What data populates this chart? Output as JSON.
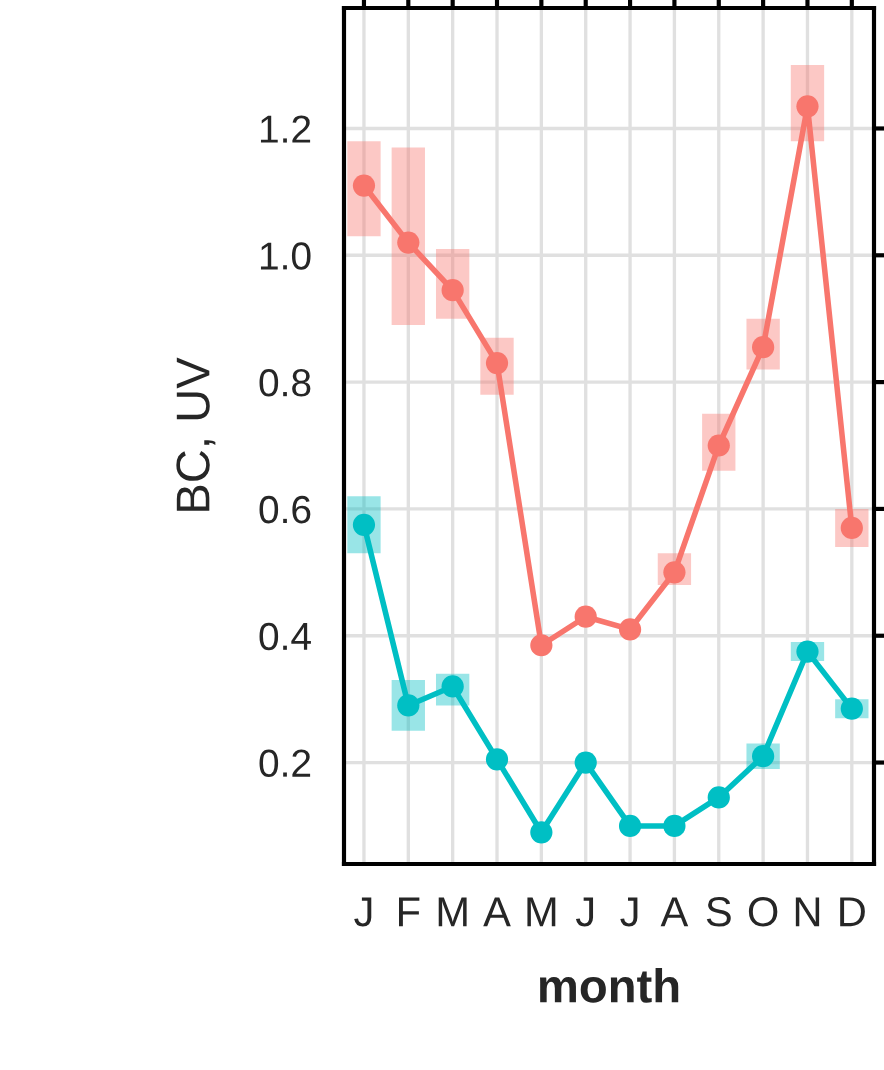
{
  "chart_data": {
    "type": "line",
    "xlabel": "month",
    "ylabel": "BC, UV",
    "categories": [
      "J",
      "F",
      "M",
      "A",
      "M",
      "J",
      "J",
      "A",
      "S",
      "O",
      "N",
      "D"
    ],
    "series": [
      {
        "color": "#f8766d",
        "values": [
          1.11,
          1.02,
          0.945,
          0.83,
          0.385,
          0.43,
          0.41,
          0.5,
          0.7,
          0.855,
          1.235,
          0.57
        ],
        "errors": [
          [
            1.03,
            1.18
          ],
          [
            0.89,
            1.17
          ],
          [
            0.9,
            1.01
          ],
          [
            0.78,
            0.87
          ],
          null,
          null,
          null,
          [
            0.48,
            0.53
          ],
          [
            0.66,
            0.75
          ],
          [
            0.82,
            0.9
          ],
          [
            1.18,
            1.3
          ],
          [
            0.54,
            0.6
          ]
        ]
      },
      {
        "color": "#00bfc4",
        "values": [
          0.575,
          0.29,
          0.32,
          0.205,
          0.09,
          0.2,
          0.1,
          0.1,
          0.145,
          0.21,
          0.375,
          0.285
        ],
        "errors": [
          [
            0.53,
            0.62
          ],
          [
            0.25,
            0.33
          ],
          [
            0.29,
            0.34
          ],
          null,
          null,
          null,
          null,
          null,
          null,
          [
            0.19,
            0.23
          ],
          [
            0.36,
            0.39
          ],
          [
            0.27,
            0.3
          ]
        ]
      }
    ],
    "ylim": [
      0.04,
      1.39
    ],
    "yticks": [
      0.2,
      0.4,
      0.6,
      0.8,
      {
        "value": 1.0,
        "label": "1.0"
      },
      1.2
    ],
    "grid": true,
    "marker": "circle",
    "line_style": "solid"
  }
}
